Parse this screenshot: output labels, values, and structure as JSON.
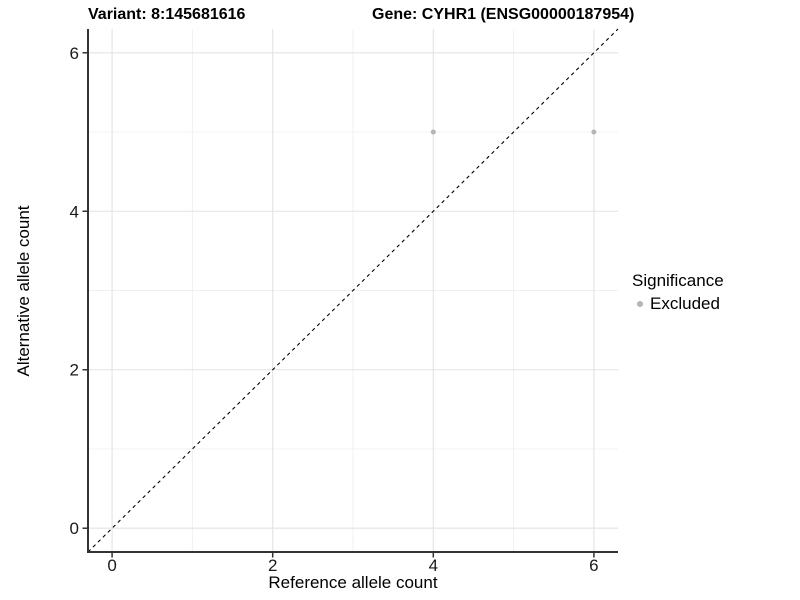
{
  "chart_data": {
    "type": "scatter",
    "title_left": "Variant: 8:145681616",
    "title_right": "Gene: CYHR1 (ENSG00000187954)",
    "xlabel": "Reference allele count",
    "ylabel": "Alternative allele count",
    "xlim": [
      -0.3,
      6.3
    ],
    "ylim": [
      -0.3,
      6.3
    ],
    "x_major_ticks": [
      0,
      2,
      4,
      6
    ],
    "y_major_ticks": [
      0,
      2,
      4,
      6
    ],
    "x_minor_ticks": [
      1,
      3,
      5
    ],
    "y_minor_ticks": [
      1,
      3,
      5
    ],
    "grid": true,
    "reference_line": {
      "type": "identity",
      "style": "dashed",
      "color": "#000000"
    },
    "series": [
      {
        "name": "Excluded",
        "color": "#b5b5b5",
        "points": [
          {
            "x": 4,
            "y": 5
          },
          {
            "x": 6,
            "y": 5
          }
        ]
      }
    ],
    "legend": {
      "title": "Significance",
      "position": "right",
      "items": [
        {
          "label": "Excluded",
          "color": "#b5b5b5",
          "marker": "dot-icon"
        }
      ]
    }
  },
  "colors": {
    "background": "#ffffff",
    "grid_major": "#e3e3e3",
    "grid_minor": "#f0f0f0",
    "axis": "#333333",
    "tick_text": "#1a1a1a",
    "point": "#b5b5b5",
    "text": "#000000"
  }
}
